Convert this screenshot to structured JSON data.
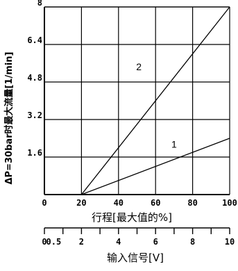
{
  "chart_data": {
    "type": "line",
    "ylabel": "ΔP=30bar时最大流量[1/min]",
    "xlabel": "行程[最大值的%]",
    "xlim": [
      0,
      100
    ],
    "ylim": [
      0,
      8
    ],
    "x_ticks": [
      "0",
      "20",
      "40",
      "60",
      "80",
      "100"
    ],
    "y_ticks": [
      "1.6",
      "3.2",
      "4.8",
      "6.4",
      "8"
    ],
    "grid": true,
    "series": [
      {
        "name": "1",
        "x": [
          20,
          100
        ],
        "y": [
          0,
          2.4
        ]
      },
      {
        "name": "2",
        "x": [
          20,
          100
        ],
        "y": [
          0,
          8.0
        ]
      }
    ],
    "secondary_axis": {
      "title": "输入信号[V]",
      "range": [
        0,
        10
      ],
      "ticks": [
        "0",
        "0.5",
        "2",
        "4",
        "6",
        "8",
        "10"
      ],
      "tick_values": [
        0,
        0.5,
        2,
        4,
        6,
        8,
        10
      ]
    }
  }
}
